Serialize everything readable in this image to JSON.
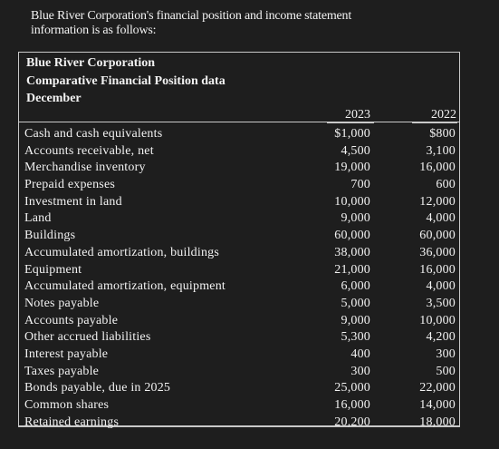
{
  "intro_text": "Blue River Corporation's financial position and income statement information is as follows:",
  "header": {
    "company": "Blue River Corporation",
    "title": "Comparative Financial Position data",
    "period": "December"
  },
  "columns": [
    "2023",
    "2022"
  ],
  "rows": [
    {
      "label": "Cash and cash equivalents",
      "y2023": "$1,000",
      "y2022": "$800"
    },
    {
      "label": "Accounts receivable, net",
      "y2023": "4,500",
      "y2022": "3,100"
    },
    {
      "label": "Merchandise inventory",
      "y2023": "19,000",
      "y2022": "16,000"
    },
    {
      "label": "Prepaid expenses",
      "y2023": "700",
      "y2022": "600"
    },
    {
      "label": "Investment in land",
      "y2023": "10,000",
      "y2022": "12,000"
    },
    {
      "label": "Land",
      "y2023": "9,000",
      "y2022": "4,000"
    },
    {
      "label": "Buildings",
      "y2023": "60,000",
      "y2022": "60,000"
    },
    {
      "label": "Accumulated amortization, buildings",
      "y2023": "38,000",
      "y2022": "36,000"
    },
    {
      "label": "Equipment",
      "y2023": "21,000",
      "y2022": "16,000"
    },
    {
      "label": "Accumulated amortization, equipment",
      "y2023": "6,000",
      "y2022": "4,000"
    },
    {
      "label": "Notes payable",
      "y2023": "5,000",
      "y2022": "3,500"
    },
    {
      "label": "Accounts payable",
      "y2023": "9,000",
      "y2022": "10,000"
    },
    {
      "label": "Other accrued liabilities",
      "y2023": "5,300",
      "y2022": "4,200"
    },
    {
      "label": "Interest payable",
      "y2023": "400",
      "y2022": "300"
    },
    {
      "label": "Taxes payable",
      "y2023": "300",
      "y2022": "500"
    },
    {
      "label": "Bonds payable, due in 2025",
      "y2023": "25,000",
      "y2022": "22,000"
    },
    {
      "label": "Common shares",
      "y2023": "16,000",
      "y2022": "14,000"
    },
    {
      "label": "Retained earnings",
      "y2023": "20,200",
      "y2022": "18,000"
    }
  ]
}
